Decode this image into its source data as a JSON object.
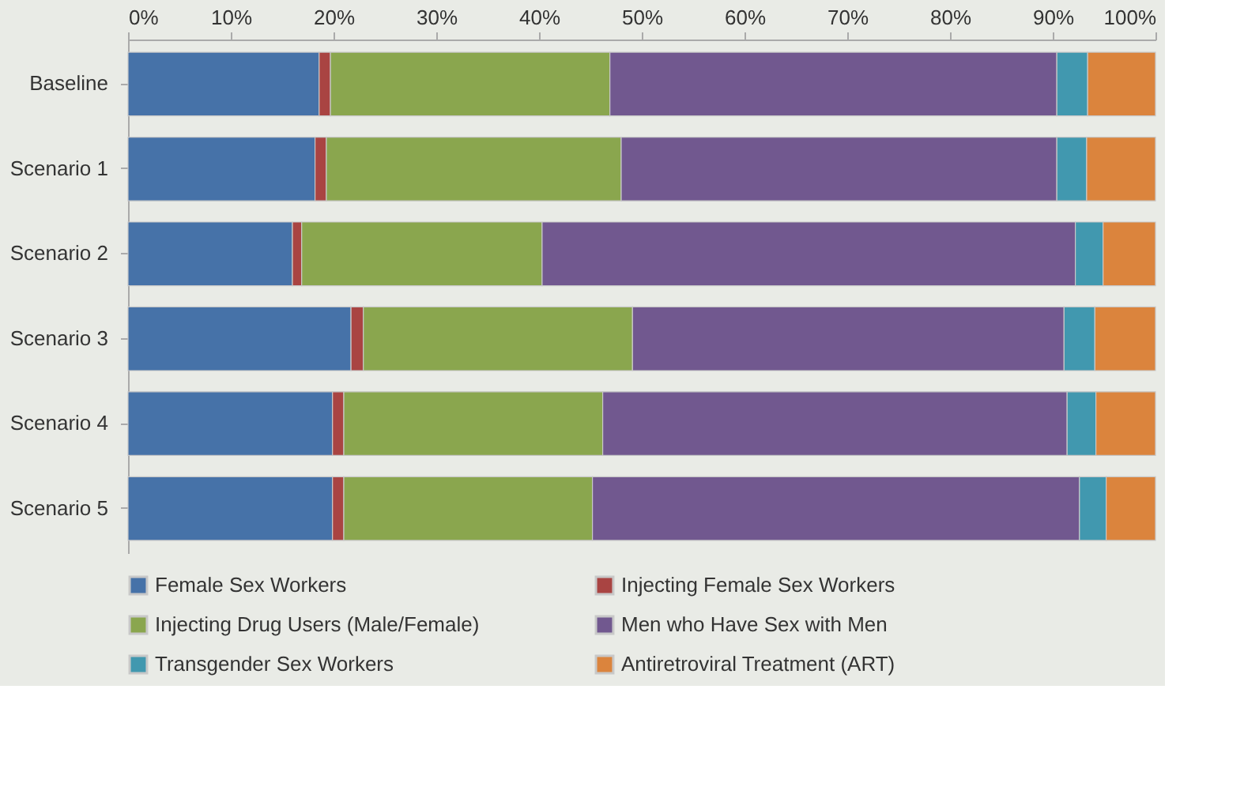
{
  "chart_data": {
    "type": "bar",
    "orientation": "horizontal",
    "stacked": true,
    "categories": [
      "Baseline",
      "Scenario 1",
      "Scenario 2",
      "Scenario 3",
      "Scenario 4",
      "Scenario 5"
    ],
    "series": [
      {
        "name": "Female Sex Workers",
        "color": "#4672a8",
        "values": [
          18.6,
          18.2,
          16.0,
          21.7,
          19.9,
          19.9
        ]
      },
      {
        "name": "Injecting Female Sex Workers",
        "color": "#a94442",
        "values": [
          1.1,
          1.1,
          0.9,
          1.2,
          1.1,
          1.1
        ]
      },
      {
        "name": "Injecting Drug Users (Male/Female)",
        "color": "#8aa64e",
        "values": [
          27.2,
          28.7,
          23.4,
          26.2,
          25.2,
          24.2
        ]
      },
      {
        "name": "Men who Have Sex with Men",
        "color": "#71588f",
        "values": [
          43.5,
          42.4,
          51.9,
          42.0,
          45.2,
          47.4
        ]
      },
      {
        "name": "Transgender Sex Workers",
        "color": "#4198af",
        "values": [
          3.0,
          2.9,
          2.7,
          3.0,
          2.8,
          2.6
        ]
      },
      {
        "name": "Antiretroviral Treatment (ART)",
        "color": "#db843d",
        "values": [
          6.6,
          6.7,
          5.1,
          5.9,
          5.8,
          4.8
        ]
      }
    ],
    "xlim": [
      0,
      100
    ],
    "xticks": [
      {
        "value": 0,
        "label": "0%"
      },
      {
        "value": 10,
        "label": "10%"
      },
      {
        "value": 20,
        "label": "20%"
      },
      {
        "value": 30,
        "label": "30%"
      },
      {
        "value": 40,
        "label": "40%"
      },
      {
        "value": 50,
        "label": "50%"
      },
      {
        "value": 60,
        "label": "60%"
      },
      {
        "value": 70,
        "label": "70%"
      },
      {
        "value": 80,
        "label": "80%"
      },
      {
        "value": 90,
        "label": "90%"
      },
      {
        "value": 100,
        "label": "100%"
      }
    ],
    "grid": false,
    "legend": "bottom"
  }
}
